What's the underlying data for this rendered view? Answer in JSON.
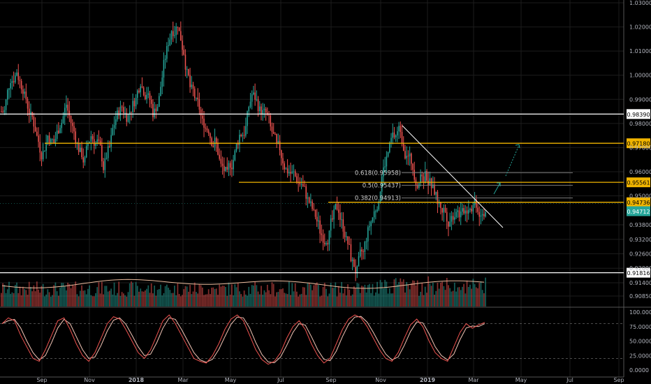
{
  "chart_data": {
    "type": "candlestick",
    "symbol_hint": "price chart with volume and stochastic oscillator",
    "price_axis": {
      "ticks": [
        "1.03000",
        "1.02000",
        "1.01000",
        "1.00000",
        "0.99000",
        "0.98000",
        "0.97000",
        "0.96000",
        "0.95000",
        "0.93800",
        "0.93200",
        "0.92600",
        "0.92000",
        "0.91400",
        "0.90850"
      ],
      "ylim": [
        0.903,
        1.031
      ]
    },
    "time_axis": {
      "ticks": [
        "Sep",
        "Nov",
        "2018",
        "Mar",
        "May",
        "Jul",
        "Sep",
        "Nov",
        "2019",
        "Mar",
        "May",
        "Jul",
        "Sep"
      ],
      "bold_ticks": [
        "2018",
        "2019"
      ]
    },
    "horizontal_levels": [
      {
        "value": 0.9839,
        "label": "0.98390",
        "color": "#ffffff",
        "kind": "support-resistance"
      },
      {
        "value": 0.9718,
        "label": "0.97180",
        "color": "#f0b400",
        "kind": "support-resistance"
      },
      {
        "value": 0.95561,
        "label": "0.95561",
        "color": "#f0b400",
        "kind": "support-resistance"
      },
      {
        "value": 0.94736,
        "label": "0.94736",
        "color": "#f0b400",
        "kind": "support-resistance"
      },
      {
        "value": 0.91816,
        "label": "0.91816",
        "color": "#ffffff",
        "kind": "support-resistance"
      }
    ],
    "last_price": {
      "value": 0.94712,
      "label": "0.94712",
      "color": "#26a69a"
    },
    "fibonacci": [
      {
        "ratio": "0.618",
        "value": 0.95958,
        "label": "0.618(0.95958)"
      },
      {
        "ratio": "0.5",
        "value": 0.95437,
        "label": "0.5(0.95437)"
      },
      {
        "ratio": "0.382",
        "value": 0.94913,
        "label": "0.382(0.94913)"
      }
    ],
    "trendline": {
      "from": [
        "Dec 2018",
        0.9775
      ],
      "to": [
        "Apr 2019",
        0.9365
      ],
      "color": "#ffffff"
    },
    "projection_arrows": {
      "color": "#26a69a",
      "solid_to": [
        "Apr 2019",
        0.952
      ],
      "dotted_to": [
        "May 2019",
        0.97
      ]
    },
    "close_series_approx": [
      0.985,
      0.999,
      1.002,
      0.995,
      0.985,
      0.978,
      0.968,
      0.975,
      0.972,
      0.98,
      0.988,
      0.978,
      0.97,
      0.964,
      0.975,
      0.972,
      0.962,
      0.97,
      0.982,
      0.987,
      0.983,
      0.99,
      0.998,
      0.993,
      0.985,
      0.99,
      1.008,
      1.019,
      1.022,
      1.01,
      0.995,
      0.988,
      0.98,
      0.978,
      0.972,
      0.962,
      0.958,
      0.965,
      0.975,
      0.978,
      0.992,
      0.988,
      0.984,
      0.978,
      0.97,
      0.965,
      0.96,
      0.958,
      0.955,
      0.948,
      0.942,
      0.936,
      0.933,
      0.94,
      0.945,
      0.935,
      0.925,
      0.918,
      0.926,
      0.938,
      0.945,
      0.958,
      0.968,
      0.975,
      0.978,
      0.968,
      0.962,
      0.956,
      0.958,
      0.955,
      0.948,
      0.944,
      0.94,
      0.945,
      0.942,
      0.946,
      0.948,
      0.944,
      0.947
    ],
    "stochastic": {
      "axis_ticks": [
        "100.0000",
        "75.0000",
        "50.0000",
        "25.0000",
        "0.0000"
      ],
      "overbought": 80,
      "oversold": 20,
      "k_approx": [
        80,
        90,
        85,
        60,
        40,
        20,
        15,
        35,
        60,
        85,
        90,
        70,
        45,
        25,
        15,
        30,
        55,
        80,
        92,
        88,
        70,
        50,
        30,
        20,
        35,
        60,
        85,
        95,
        80,
        60,
        40,
        20,
        15,
        12,
        25,
        45,
        70,
        88,
        95,
        85,
        60,
        35,
        18,
        10,
        15,
        30,
        55,
        75,
        85,
        70,
        45,
        25,
        12,
        20,
        45,
        70,
        88,
        95,
        90,
        75,
        55,
        35,
        20,
        15,
        30,
        55,
        78,
        88,
        75,
        50,
        30,
        20,
        15,
        40,
        65,
        80,
        72,
        78,
        82
      ]
    },
    "colors": {
      "up": "#26a69a",
      "down": "#ef5350",
      "background": "#000000",
      "grid": "#1c1c1c",
      "axis_text": "#b2b5be",
      "fib_line": "#7a7a7a",
      "stoch_line": "#ef5350",
      "volume_ma": "#e9b99b"
    },
    "grid": true
  }
}
